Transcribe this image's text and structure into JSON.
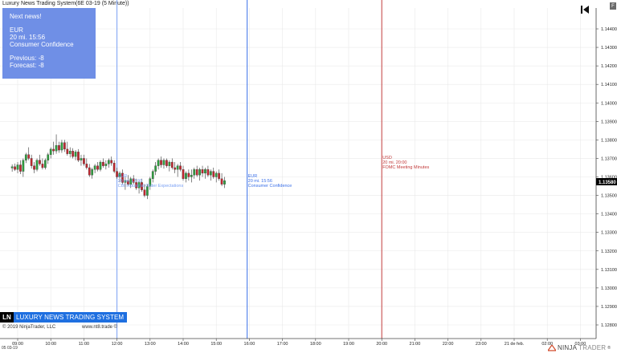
{
  "window": {
    "title": "Luxury News Trading System(6E 03-19 (5 Minute))",
    "f_button": "F"
  },
  "news_box": {
    "heading": "Next news!",
    "currency": "EUR",
    "time": "20 mi. 15:56",
    "event": "Consumer Confidence",
    "previous": "Previous: -8",
    "forecast": "Forecast: -8"
  },
  "news_lines": [
    {
      "currency": "EUR",
      "time": "20 mi. 12:00",
      "event": "CBI Industrial Order Expectations",
      "color": "#7aa0f4"
    },
    {
      "currency": "EUR",
      "time": "20 mi. 15:56",
      "event": "Consumer Confidence",
      "color": "#3a6fe8"
    },
    {
      "currency": "USD",
      "time": "20 mi. 20:00",
      "event": "FOMC Meeting Minutes",
      "color": "#c23b3b"
    }
  ],
  "price_axis": {
    "labels": [
      "1.14400",
      "1.14300",
      "1.14200",
      "1.14100",
      "1.14000",
      "1.13900",
      "1.13800",
      "1.13700",
      "1.13600",
      "1.13500",
      "1.13400",
      "1.13300",
      "1.13200",
      "1.13100",
      "1.13000",
      "1.12900",
      "1.12800"
    ],
    "current_price": "1.13580"
  },
  "time_axis": {
    "labels": [
      "09:00",
      "10:00",
      "11:00",
      "12:00",
      "13:00",
      "14:00",
      "15:00",
      "16:00",
      "17:00",
      "18:00",
      "19:00",
      "20:00",
      "21:00",
      "22:00",
      "23:00",
      "21 de feb.",
      "02:00",
      "03:00"
    ],
    "date": "05 03-19"
  },
  "branding": {
    "logo_short": "LN",
    "logo_text": "LUXURY NEWS TRADING SYSTEM",
    "copyright": "© 2019 NinjaTrader, LLC",
    "website": "www.nt8.trade ©",
    "brand_bold": "NINJA",
    "brand_thin": "TRADER",
    "brand_mark": "®"
  },
  "colors": {
    "up_candle": "#2e9e3e",
    "down_candle": "#c0262e",
    "grid": "#e9e9e9",
    "info_box": "#6f8fe6",
    "logo_blue": "#1e6fe0"
  },
  "chart_data": {
    "type": "candlestick",
    "interval": "5 Minute",
    "instrument": "6E 03-19",
    "candles": [
      {
        "t": "08:50",
        "o": 1.13648,
        "h": 1.13668,
        "l": 1.13628,
        "c": 1.13655
      },
      {
        "t": "08:55",
        "o": 1.13655,
        "h": 1.13672,
        "l": 1.13632,
        "c": 1.1364
      },
      {
        "t": "09:00",
        "o": 1.1364,
        "h": 1.1368,
        "l": 1.1362,
        "c": 1.13665
      },
      {
        "t": "09:05",
        "o": 1.13665,
        "h": 1.1369,
        "l": 1.13615,
        "c": 1.1363
      },
      {
        "t": "09:10",
        "o": 1.1363,
        "h": 1.137,
        "l": 1.136,
        "c": 1.1369
      },
      {
        "t": "09:15",
        "o": 1.1369,
        "h": 1.1373,
        "l": 1.13675,
        "c": 1.1372
      },
      {
        "t": "09:20",
        "o": 1.1372,
        "h": 1.1376,
        "l": 1.1369,
        "c": 1.137
      },
      {
        "t": "09:25",
        "o": 1.137,
        "h": 1.1372,
        "l": 1.13645,
        "c": 1.1366
      },
      {
        "t": "09:30",
        "o": 1.1366,
        "h": 1.1368,
        "l": 1.1362,
        "c": 1.1364
      },
      {
        "t": "09:35",
        "o": 1.1364,
        "h": 1.137,
        "l": 1.1363,
        "c": 1.1369
      },
      {
        "t": "09:40",
        "o": 1.1369,
        "h": 1.1372,
        "l": 1.1366,
        "c": 1.1367
      },
      {
        "t": "09:45",
        "o": 1.1367,
        "h": 1.137,
        "l": 1.1364,
        "c": 1.1365
      },
      {
        "t": "09:50",
        "o": 1.1365,
        "h": 1.137,
        "l": 1.1364,
        "c": 1.1369
      },
      {
        "t": "09:55",
        "o": 1.1369,
        "h": 1.1373,
        "l": 1.1367,
        "c": 1.1372
      },
      {
        "t": "10:00",
        "o": 1.1372,
        "h": 1.1376,
        "l": 1.137,
        "c": 1.1375
      },
      {
        "t": "10:05",
        "o": 1.1375,
        "h": 1.1379,
        "l": 1.1372,
        "c": 1.1374
      },
      {
        "t": "10:10",
        "o": 1.1374,
        "h": 1.1383,
        "l": 1.13725,
        "c": 1.1377
      },
      {
        "t": "10:15",
        "o": 1.1377,
        "h": 1.1379,
        "l": 1.1373,
        "c": 1.13745
      },
      {
        "t": "10:20",
        "o": 1.13745,
        "h": 1.138,
        "l": 1.1373,
        "c": 1.13785
      },
      {
        "t": "10:25",
        "o": 1.13785,
        "h": 1.138,
        "l": 1.13735,
        "c": 1.1375
      },
      {
        "t": "10:30",
        "o": 1.1375,
        "h": 1.1379,
        "l": 1.13715,
        "c": 1.13725
      },
      {
        "t": "10:35",
        "o": 1.13725,
        "h": 1.1376,
        "l": 1.13705,
        "c": 1.1374
      },
      {
        "t": "10:40",
        "o": 1.1374,
        "h": 1.13755,
        "l": 1.137,
        "c": 1.1371
      },
      {
        "t": "10:45",
        "o": 1.1371,
        "h": 1.13745,
        "l": 1.1369,
        "c": 1.13735
      },
      {
        "t": "10:50",
        "o": 1.13735,
        "h": 1.1375,
        "l": 1.1368,
        "c": 1.1369
      },
      {
        "t": "10:55",
        "o": 1.1369,
        "h": 1.1372,
        "l": 1.1366,
        "c": 1.137
      },
      {
        "t": "11:00",
        "o": 1.137,
        "h": 1.1372,
        "l": 1.1366,
        "c": 1.1367
      },
      {
        "t": "11:05",
        "o": 1.1367,
        "h": 1.137,
        "l": 1.1364,
        "c": 1.1365
      },
      {
        "t": "11:10",
        "o": 1.1365,
        "h": 1.1367,
        "l": 1.136,
        "c": 1.1361
      },
      {
        "t": "11:15",
        "o": 1.1361,
        "h": 1.1365,
        "l": 1.1359,
        "c": 1.1364
      },
      {
        "t": "11:20",
        "o": 1.1364,
        "h": 1.1367,
        "l": 1.1362,
        "c": 1.1366
      },
      {
        "t": "11:25",
        "o": 1.1366,
        "h": 1.1368,
        "l": 1.1363,
        "c": 1.1364
      },
      {
        "t": "11:30",
        "o": 1.1364,
        "h": 1.1369,
        "l": 1.1363,
        "c": 1.1368
      },
      {
        "t": "11:35",
        "o": 1.1368,
        "h": 1.137,
        "l": 1.1365,
        "c": 1.1366
      },
      {
        "t": "11:40",
        "o": 1.1366,
        "h": 1.1369,
        "l": 1.1364,
        "c": 1.1367
      },
      {
        "t": "11:45",
        "o": 1.1367,
        "h": 1.137,
        "l": 1.1365,
        "c": 1.1369
      },
      {
        "t": "11:50",
        "o": 1.1369,
        "h": 1.1371,
        "l": 1.1366,
        "c": 1.13675
      },
      {
        "t": "11:55",
        "o": 1.13675,
        "h": 1.1369,
        "l": 1.1362,
        "c": 1.1363
      },
      {
        "t": "12:00",
        "o": 1.1363,
        "h": 1.1365,
        "l": 1.1359,
        "c": 1.136
      },
      {
        "t": "12:05",
        "o": 1.136,
        "h": 1.1363,
        "l": 1.1357,
        "c": 1.1362
      },
      {
        "t": "12:10",
        "o": 1.1362,
        "h": 1.1364,
        "l": 1.1356,
        "c": 1.1357
      },
      {
        "t": "12:15",
        "o": 1.1357,
        "h": 1.136,
        "l": 1.1353,
        "c": 1.1358
      },
      {
        "t": "12:20",
        "o": 1.1358,
        "h": 1.1361,
        "l": 1.1355,
        "c": 1.1356
      },
      {
        "t": "12:25",
        "o": 1.1356,
        "h": 1.136,
        "l": 1.1354,
        "c": 1.1359
      },
      {
        "t": "12:30",
        "o": 1.1359,
        "h": 1.1361,
        "l": 1.1356,
        "c": 1.1357
      },
      {
        "t": "12:35",
        "o": 1.1357,
        "h": 1.1359,
        "l": 1.1353,
        "c": 1.1354
      },
      {
        "t": "12:40",
        "o": 1.1354,
        "h": 1.1358,
        "l": 1.1351,
        "c": 1.1357
      },
      {
        "t": "12:45",
        "o": 1.1357,
        "h": 1.1359,
        "l": 1.1352,
        "c": 1.1353
      },
      {
        "t": "12:50",
        "o": 1.1353,
        "h": 1.1356,
        "l": 1.1349,
        "c": 1.135
      },
      {
        "t": "12:55",
        "o": 1.135,
        "h": 1.1356,
        "l": 1.1348,
        "c": 1.1355
      },
      {
        "t": "13:00",
        "o": 1.1355,
        "h": 1.136,
        "l": 1.1353,
        "c": 1.1359
      },
      {
        "t": "13:05",
        "o": 1.1359,
        "h": 1.1364,
        "l": 1.1357,
        "c": 1.1363
      },
      {
        "t": "13:10",
        "o": 1.1363,
        "h": 1.1368,
        "l": 1.1361,
        "c": 1.1366
      },
      {
        "t": "13:15",
        "o": 1.1366,
        "h": 1.137,
        "l": 1.1364,
        "c": 1.1369
      },
      {
        "t": "13:20",
        "o": 1.1369,
        "h": 1.1371,
        "l": 1.1365,
        "c": 1.13665
      },
      {
        "t": "13:25",
        "o": 1.13665,
        "h": 1.137,
        "l": 1.13645,
        "c": 1.1369
      },
      {
        "t": "13:30",
        "o": 1.1369,
        "h": 1.137,
        "l": 1.1365,
        "c": 1.1366
      },
      {
        "t": "13:35",
        "o": 1.1366,
        "h": 1.1369,
        "l": 1.1363,
        "c": 1.1368
      },
      {
        "t": "13:40",
        "o": 1.1368,
        "h": 1.137,
        "l": 1.1364,
        "c": 1.1365
      },
      {
        "t": "13:45",
        "o": 1.1365,
        "h": 1.1368,
        "l": 1.1362,
        "c": 1.1364
      },
      {
        "t": "13:50",
        "o": 1.1364,
        "h": 1.1367,
        "l": 1.136,
        "c": 1.1366
      },
      {
        "t": "13:55",
        "o": 1.1366,
        "h": 1.1368,
        "l": 1.1363,
        "c": 1.1364
      },
      {
        "t": "14:00",
        "o": 1.1364,
        "h": 1.1366,
        "l": 1.1358,
        "c": 1.1359
      },
      {
        "t": "14:05",
        "o": 1.1359,
        "h": 1.1363,
        "l": 1.1357,
        "c": 1.1362
      },
      {
        "t": "14:10",
        "o": 1.1362,
        "h": 1.1364,
        "l": 1.1358,
        "c": 1.136
      },
      {
        "t": "14:15",
        "o": 1.136,
        "h": 1.1364,
        "l": 1.1357,
        "c": 1.1361
      },
      {
        "t": "14:20",
        "o": 1.1361,
        "h": 1.1365,
        "l": 1.1359,
        "c": 1.1364
      },
      {
        "t": "14:25",
        "o": 1.1364,
        "h": 1.1366,
        "l": 1.136,
        "c": 1.1361
      },
      {
        "t": "14:30",
        "o": 1.1361,
        "h": 1.1365,
        "l": 1.1358,
        "c": 1.1364
      },
      {
        "t": "14:35",
        "o": 1.1364,
        "h": 1.1366,
        "l": 1.136,
        "c": 1.1362
      },
      {
        "t": "14:40",
        "o": 1.1362,
        "h": 1.1365,
        "l": 1.1359,
        "c": 1.1364
      },
      {
        "t": "14:45",
        "o": 1.1364,
        "h": 1.1366,
        "l": 1.136,
        "c": 1.1361
      },
      {
        "t": "14:50",
        "o": 1.1361,
        "h": 1.1364,
        "l": 1.1358,
        "c": 1.1363
      },
      {
        "t": "14:55",
        "o": 1.1363,
        "h": 1.1365,
        "l": 1.1359,
        "c": 1.136
      },
      {
        "t": "15:00",
        "o": 1.136,
        "h": 1.1363,
        "l": 1.1357,
        "c": 1.1362
      },
      {
        "t": "15:05",
        "o": 1.1362,
        "h": 1.1364,
        "l": 1.1358,
        "c": 1.1359
      },
      {
        "t": "15:10",
        "o": 1.1359,
        "h": 1.1362,
        "l": 1.1355,
        "c": 1.1356
      },
      {
        "t": "15:15",
        "o": 1.1356,
        "h": 1.136,
        "l": 1.1354,
        "c": 1.1358
      }
    ]
  }
}
